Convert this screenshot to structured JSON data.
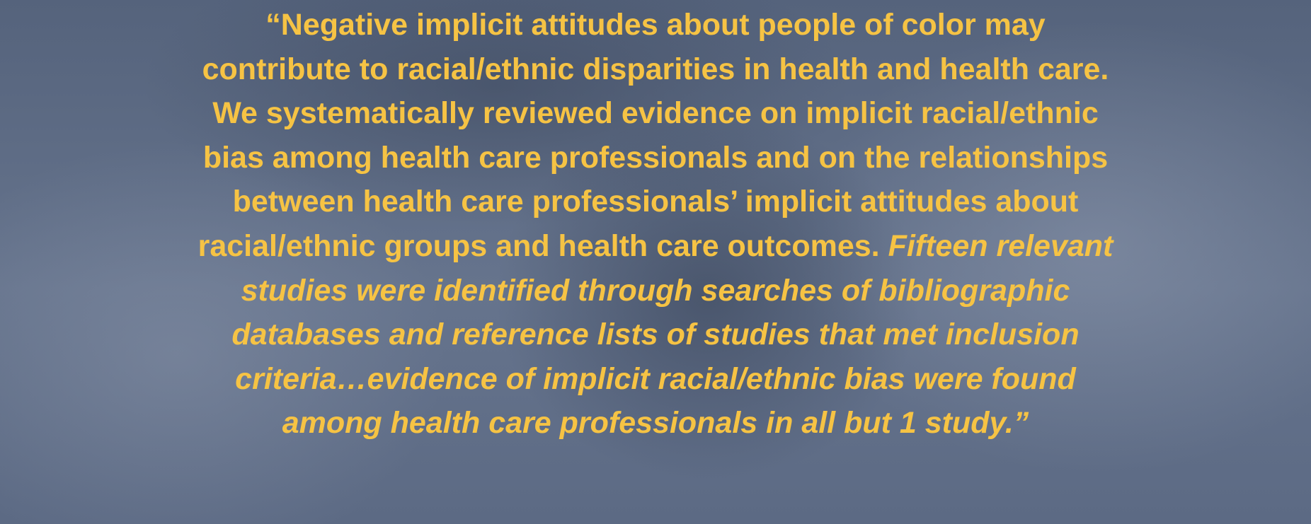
{
  "quote": {
    "color": "#f6c344",
    "lines": [
      [
        {
          "text": "“Negative implicit attitudes about people of color may",
          "style": "normal"
        }
      ],
      [
        {
          "text": "contribute to racial/ethnic disparities in health and health care.",
          "style": "normal"
        }
      ],
      [
        {
          "text": "We systematically reviewed evidence on implicit racial/ethnic",
          "style": "normal"
        }
      ],
      [
        {
          "text": "bias among health care professionals and on the relationships",
          "style": "normal"
        }
      ],
      [
        {
          "text": "between health care professionals’ implicit attitudes about",
          "style": "normal"
        }
      ],
      [
        {
          "text": "racial/ethnic groups and health care outcomes.",
          "style": "normal"
        },
        {
          "text": "Fifteen relevant",
          "style": "italic"
        }
      ],
      [
        {
          "text": "studies were identified through searches of bibliographic",
          "style": "italic"
        }
      ],
      [
        {
          "text": "databases and reference lists of studies that met inclusion",
          "style": "italic"
        }
      ],
      [
        {
          "text": "criteria…evidence of implicit racial/ethnic bias were found",
          "style": "italic"
        }
      ],
      [
        {
          "text": "among health care professionals in all but 1 study.”",
          "style": "italic"
        }
      ]
    ]
  }
}
